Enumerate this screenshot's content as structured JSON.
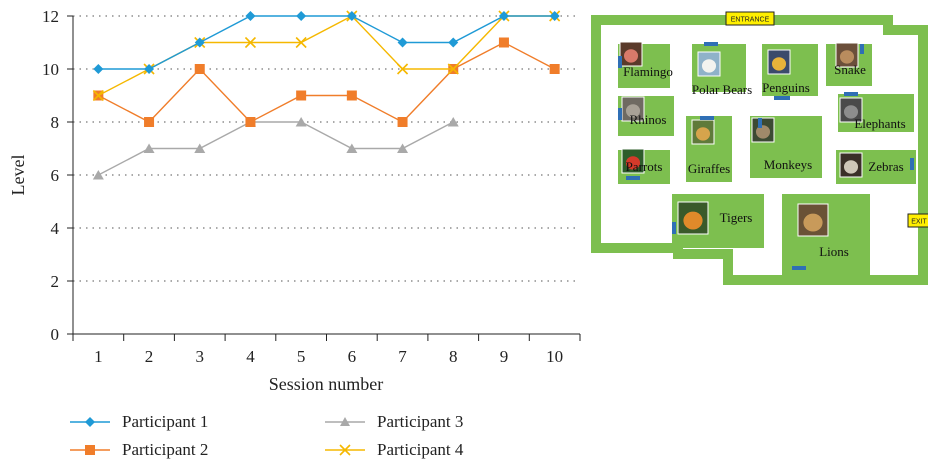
{
  "chart_data": {
    "type": "line",
    "title": "",
    "xlabel": "Session number",
    "ylabel": "Level",
    "categories": [
      "1",
      "2",
      "3",
      "4",
      "5",
      "6",
      "7",
      "8",
      "9",
      "10"
    ],
    "ylim": [
      0,
      12
    ],
    "yticks": [
      "0",
      "2",
      "4",
      "6",
      "8",
      "10",
      "12"
    ],
    "grid": "horizontal dotted",
    "legend_position": "bottom",
    "series": [
      {
        "name": "Participant 1",
        "color": "#1f9ad6",
        "marker": "diamond",
        "values": [
          10,
          10,
          11,
          12,
          12,
          12,
          11,
          11,
          12,
          12
        ]
      },
      {
        "name": "Participant 2",
        "color": "#f07d2a",
        "marker": "square",
        "values": [
          9,
          8,
          10,
          8,
          9,
          9,
          8,
          10,
          11,
          10
        ]
      },
      {
        "name": "Participant 3",
        "color": "#a9a9a9",
        "marker": "triangle",
        "values": [
          6,
          7,
          7,
          8,
          8,
          7,
          7,
          8,
          null,
          null
        ]
      },
      {
        "name": "Participant 4",
        "color": "#f5b800",
        "marker": "x",
        "values": [
          9,
          10,
          11,
          11,
          11,
          12,
          10,
          10,
          12,
          12
        ]
      }
    ]
  },
  "zoo_map": {
    "entrance_label": "ENTRANCE",
    "exit_label": "EXIT",
    "path_color": "#7dbf4f",
    "enclosure_color": "#7dbf4f",
    "door_color": "#2f6fb5",
    "sign_color": "#ffef00",
    "enclosures": [
      {
        "label": "Flamingo",
        "photo": "flamingo"
      },
      {
        "label": "Polar Bears",
        "photo": "polar-bear"
      },
      {
        "label": "Penguins",
        "photo": "penguin"
      },
      {
        "label": "Snake",
        "photo": "snake"
      },
      {
        "label": "Rhinos",
        "photo": "rhino"
      },
      {
        "label": "Elephants",
        "photo": "elephant"
      },
      {
        "label": "Parrots",
        "photo": "parrot"
      },
      {
        "label": "Giraffes",
        "photo": "giraffe"
      },
      {
        "label": "Monkeys",
        "photo": "monkey"
      },
      {
        "label": "Zebras",
        "photo": "zebra"
      },
      {
        "label": "Tigers",
        "photo": "tiger"
      },
      {
        "label": "Lions",
        "photo": "lion"
      }
    ]
  }
}
